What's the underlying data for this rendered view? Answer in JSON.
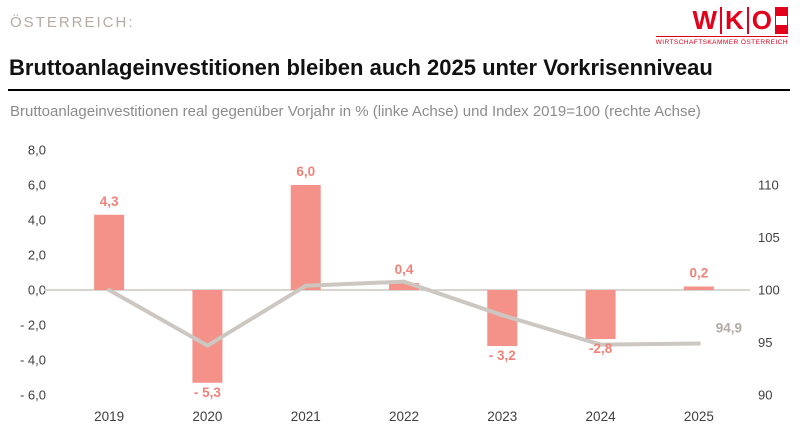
{
  "header": {
    "kicker": "ÖSTERREICH:"
  },
  "logo": {
    "letters": [
      "W",
      "K",
      "O"
    ],
    "caption": "WIRTSCHAFTSKAMMER ÖSTERREICH"
  },
  "colors": {
    "bar": "#f49189",
    "bar_label": "#ef8279",
    "line": "#ccc7c1",
    "line_label": "#b1aca5",
    "zero_line": "#d8d4cf",
    "axis_text": "#3f3f3f",
    "wko_red": "#e2001a",
    "kicker": "#b6aaa4",
    "subtitle": "#8c8c8c"
  },
  "chart_data": {
    "type": "bar",
    "title": "Bruttoanlageinvestitionen bleiben auch 2025 unter Vorkrisenniveau",
    "subtitle": "Bruttoanlageinvestitionen real gegenüber Vorjahr in % (linke Achse) und Index 2019=100 (rechte Achse)",
    "categories": [
      "2019",
      "2020",
      "2021",
      "2022",
      "2023",
      "2024",
      "2025"
    ],
    "series": [
      {
        "name": "Bruttoanlageinvestitionen real gegenüber Vorjahr in %",
        "type": "bar",
        "axis": "left",
        "values": [
          4.3,
          -5.3,
          6.0,
          0.4,
          -3.2,
          -2.8,
          0.2
        ],
        "labels": [
          "4,3",
          "- 5,3",
          "6,0",
          "0,4",
          "- 3,2",
          "-2,8",
          "0,2"
        ]
      },
      {
        "name": "Index 2019=100",
        "type": "line",
        "axis": "right",
        "values": [
          100,
          94.7,
          100.4,
          100.8,
          97.6,
          94.8,
          94.9
        ],
        "end_label": "94,9"
      }
    ],
    "left_axis": {
      "ticks": [
        8,
        6,
        4,
        2,
        0,
        -2,
        -4,
        -6
      ],
      "tick_labels": [
        "8,0",
        "6,0",
        "4,0",
        "2,0",
        "0,0",
        "- 2,0",
        "- 4,0",
        "- 6,0"
      ],
      "min": -6,
      "max": 8
    },
    "right_axis": {
      "ticks": [
        110,
        105,
        100,
        95,
        90
      ],
      "tick_labels": [
        "110",
        "105",
        "100",
        "95",
        "90"
      ],
      "alignment": "index 100 aligns with 0,0 on left axis; 5 index units = 3 percent units"
    },
    "grid": "horizontal zero line only",
    "legend": "none"
  }
}
